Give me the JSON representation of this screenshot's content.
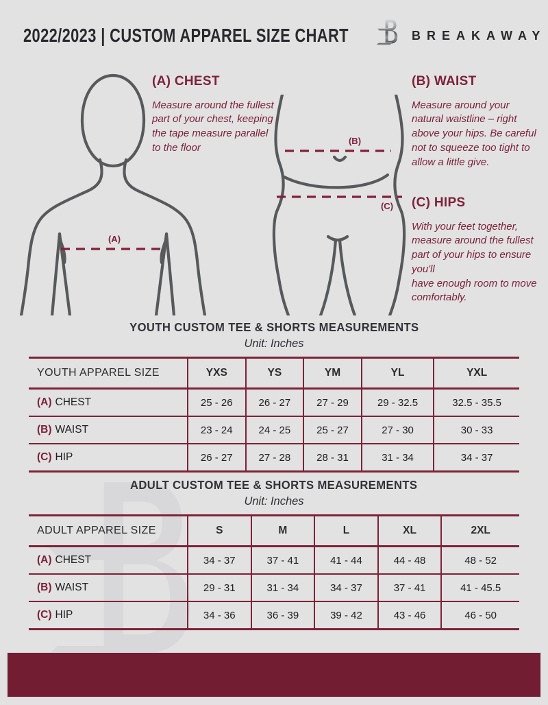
{
  "page": {
    "background": "#e2e2e3",
    "accent_maroon": "#7d2138",
    "bar_color": "#721d32",
    "figure_gray": "#58595b"
  },
  "header": {
    "title": "2022/2023  |  CUSTOM APPAREL SIZE CHART",
    "brand": "BREAKAWAY",
    "logo_icon": "breakaway-b-logo"
  },
  "instructions": [
    {
      "id": "A",
      "heading": "(A) CHEST",
      "body": "Measure around the fullest part of your chest, keeping the tape measure parallel to the floor"
    },
    {
      "id": "B",
      "heading": "(B) WAIST",
      "body": "Measure around your natural waistline – right above your hips. Be careful not to squeeze too tight to allow a little give."
    },
    {
      "id": "C",
      "heading": "(C) HIPS",
      "body": "With your feet together, measure around the fullest part of your hips to ensure you'll\nhave enough room to move comfortably."
    }
  ],
  "diagram_labels": {
    "chest": "(A)",
    "waist": "(B)",
    "hips": "(C)"
  },
  "youth_table": {
    "title": "YOUTH CUSTOM TEE & SHORTS MEASUREMENTS",
    "unit": "Unit: Inches",
    "size_header": "YOUTH APPAREL SIZE",
    "columns": [
      "YXS",
      "YS",
      "YM",
      "YL",
      "YXL"
    ],
    "rows": [
      {
        "prefix": "(A)",
        "label": "CHEST",
        "values": [
          "25 - 26",
          "26 - 27",
          "27 - 29",
          "29 - 32.5",
          "32.5 - 35.5"
        ]
      },
      {
        "prefix": "(B)",
        "label": "WAIST",
        "values": [
          "23 - 24",
          "24 - 25",
          "25 - 27",
          "27 - 30",
          "30 - 33"
        ]
      },
      {
        "prefix": "(C)",
        "label": "HIP",
        "values": [
          "26 - 27",
          "27 - 28",
          "28 - 31",
          "31 - 34",
          "34 - 37"
        ]
      }
    ]
  },
  "adult_table": {
    "title": "ADULT CUSTOM TEE & SHORTS MEASUREMENTS",
    "unit": "Unit: Inches",
    "size_header": "ADULT APPAREL SIZE",
    "columns": [
      "S",
      "M",
      "L",
      "XL",
      "2XL"
    ],
    "rows": [
      {
        "prefix": "(A)",
        "label": "CHEST",
        "values": [
          "34 - 37",
          "37 - 41",
          "41 - 44",
          "44 - 48",
          "48 - 52"
        ]
      },
      {
        "prefix": "(B)",
        "label": "WAIST",
        "values": [
          "29 - 31",
          "31 - 34",
          "34 - 37",
          "37 - 41",
          "41 - 45.5"
        ]
      },
      {
        "prefix": "(C)",
        "label": "HIP",
        "values": [
          "34 - 36",
          "36 - 39",
          "39 - 42",
          "43 - 46",
          "46 - 50"
        ]
      }
    ]
  }
}
